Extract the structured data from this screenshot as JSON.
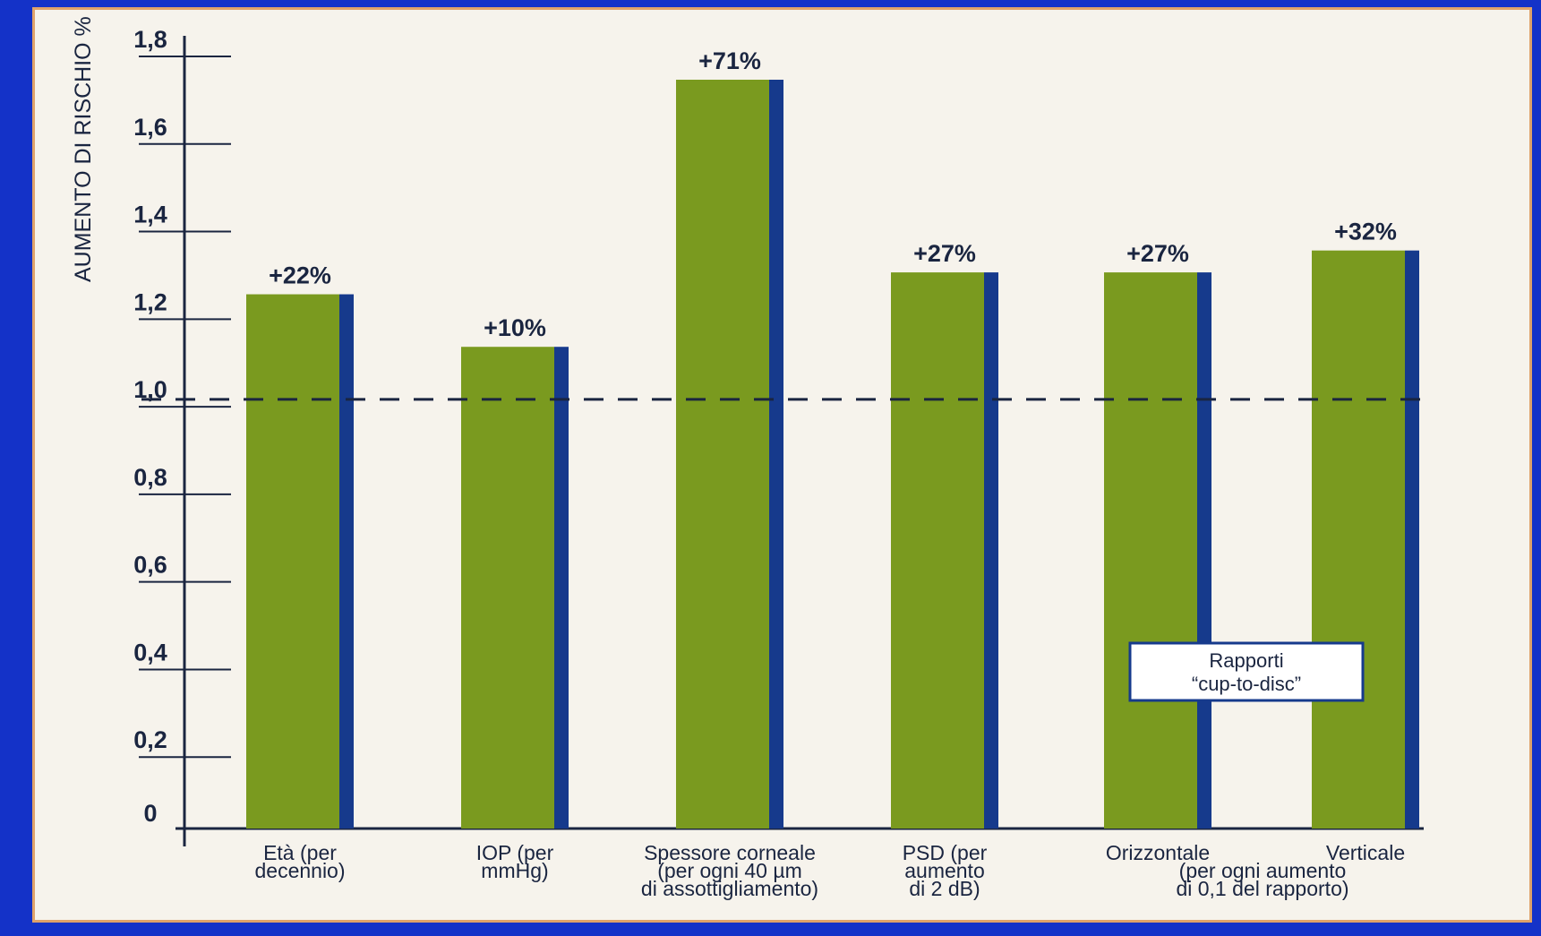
{
  "colors": {
    "background": "#1432c8",
    "paper": "#f6f3ec",
    "frame": "#e0a36a",
    "bar_fill": "#7a9a1f",
    "bar_edge": "#163a8c",
    "text": "#1a2540",
    "axis": "#1a2540"
  },
  "chart_data": {
    "type": "bar",
    "title": "",
    "xlabel": "",
    "ylabel": "AUMENTO DI RISCHIO %",
    "ylim": [
      0,
      1.8
    ],
    "yticks": [
      {
        "value": 0,
        "label": "0"
      },
      {
        "value": 0.2,
        "label": "0,2"
      },
      {
        "value": 0.4,
        "label": "0,4"
      },
      {
        "value": 0.6,
        "label": "0,6"
      },
      {
        "value": 0.8,
        "label": "0,8"
      },
      {
        "value": 1.0,
        "label": "1,0"
      },
      {
        "value": 1.2,
        "label": "1,2"
      },
      {
        "value": 1.4,
        "label": "1,4"
      },
      {
        "value": 1.6,
        "label": "1,6"
      },
      {
        "value": 1.8,
        "label": "1,8"
      }
    ],
    "reference_line": {
      "value": 0.98,
      "style": "dashed"
    },
    "categories": [
      [
        "Età (per",
        "decennio)"
      ],
      [
        "IOP (per",
        "mmHg)"
      ],
      [
        "Spessore corneale",
        "(per ogni 40 µm",
        "di assottigliamento)"
      ],
      [
        "PSD (per",
        "aumento",
        "di 2 dB)"
      ],
      [
        "Orizzontale",
        "(per ogni aumento",
        "di 0,1 del rapporto)"
      ],
      [
        "Verticale"
      ]
    ],
    "values": [
      1.22,
      1.1,
      1.71,
      1.27,
      1.27,
      1.32
    ],
    "data_labels": [
      "+22%",
      "+10%",
      "+71%",
      "+27%",
      "+27%",
      "+32%"
    ],
    "legend": {
      "lines": [
        "Rapporti",
        "“cup-to-disc”"
      ],
      "position": "right"
    },
    "grid": false
  }
}
